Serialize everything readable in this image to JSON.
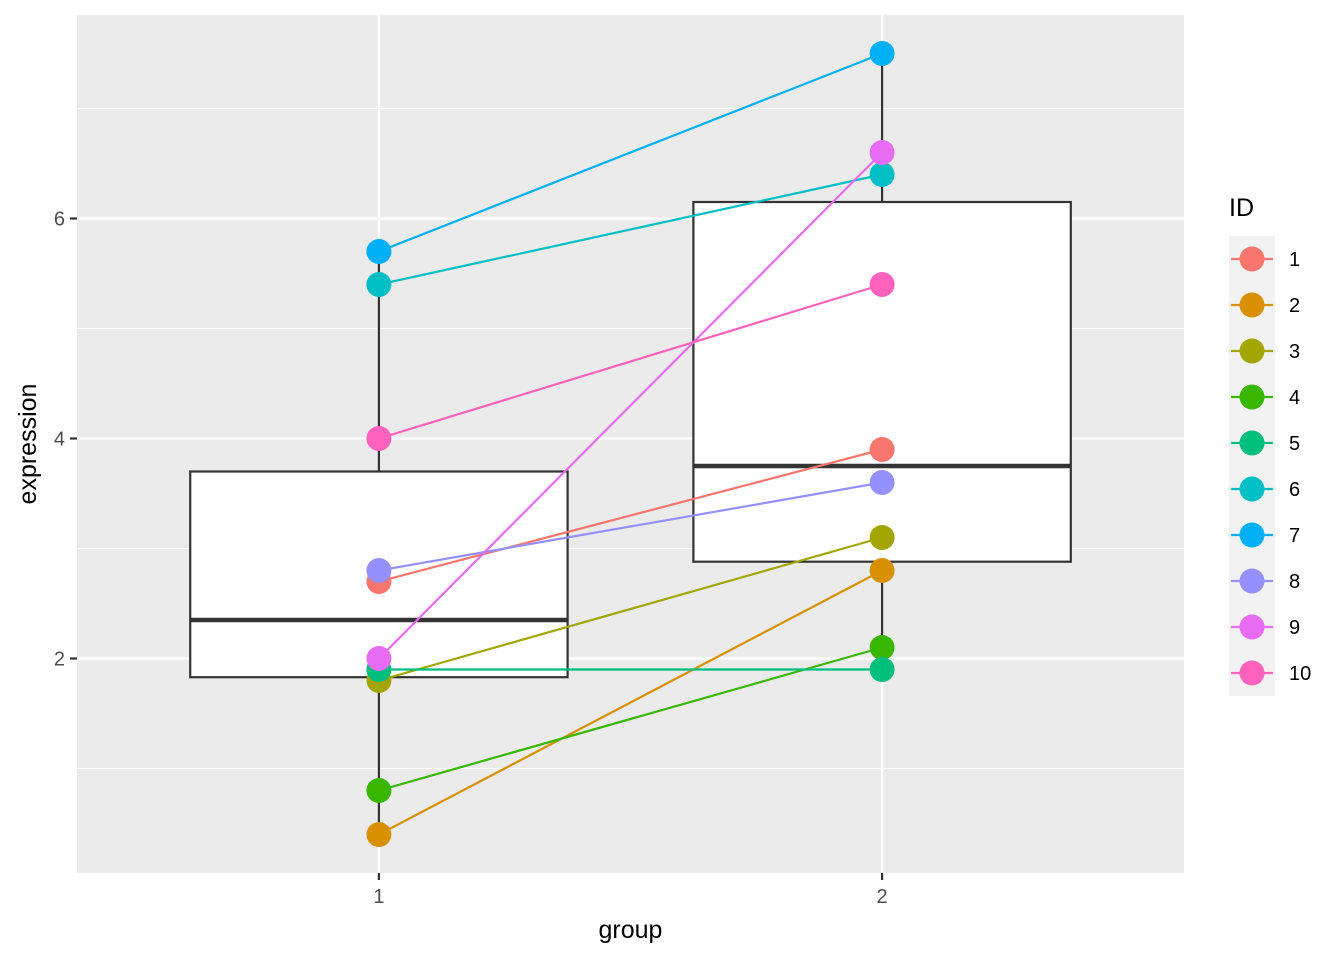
{
  "chart_data": {
    "type": "box-with-paired-points",
    "xlabel": "group",
    "ylabel": "expression",
    "categories": [
      "1",
      "2"
    ],
    "y_ticks": [
      2,
      4,
      6
    ],
    "ylim": [
      0.05,
      7.85
    ],
    "grid": true,
    "legend": {
      "title": "ID",
      "position": "right"
    },
    "boxes": [
      {
        "group": "1",
        "lower_whisker": 0.4,
        "q1": 1.83,
        "median": 2.35,
        "q3": 3.7,
        "upper_whisker": 5.7
      },
      {
        "group": "2",
        "lower_whisker": 1.9,
        "q1": 2.88,
        "median": 3.75,
        "q3": 6.15,
        "upper_whisker": 7.5
      }
    ],
    "series": [
      {
        "name": "1",
        "color": "#F8766D",
        "values": [
          2.7,
          3.9
        ]
      },
      {
        "name": "2",
        "color": "#D89000",
        "values": [
          0.4,
          2.8
        ]
      },
      {
        "name": "3",
        "color": "#A3A500",
        "values": [
          1.8,
          3.1
        ]
      },
      {
        "name": "4",
        "color": "#39B600",
        "values": [
          0.8,
          2.1
        ]
      },
      {
        "name": "5",
        "color": "#00BF7D",
        "values": [
          1.9,
          1.9
        ]
      },
      {
        "name": "6",
        "color": "#00BFC4",
        "values": [
          5.4,
          6.4
        ]
      },
      {
        "name": "7",
        "color": "#00B0F6",
        "values": [
          5.7,
          7.5
        ]
      },
      {
        "name": "8",
        "color": "#9590FF",
        "values": [
          2.8,
          3.6
        ]
      },
      {
        "name": "9",
        "color": "#E76BF3",
        "values": [
          2.0,
          6.6
        ]
      },
      {
        "name": "10",
        "color": "#FF62BC",
        "values": [
          4.0,
          5.4
        ]
      }
    ]
  }
}
